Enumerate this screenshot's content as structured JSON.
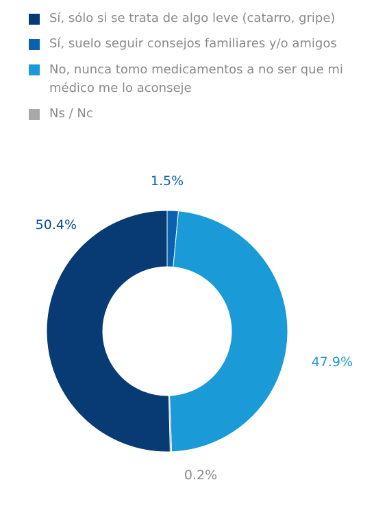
{
  "chart_data": {
    "type": "pie",
    "donut": true,
    "legend_position": "top-left",
    "slices": [
      {
        "label": "Sí, suelo seguir consejos familiares y/o amigos",
        "value": 1.5,
        "display": "1.5%",
        "color": "#0a62ae",
        "label_color": "#0a62ae"
      },
      {
        "label": "No, nunca tomo medicamentos a no ser que mi médico me lo aconseje",
        "value": 47.9,
        "display": "47.9%",
        "color": "#1a9ad6",
        "label_color": "#1a9ad6"
      },
      {
        "label": "Ns / Nc",
        "value": 0.2,
        "display": "0.2%",
        "color": "#a6a8ab",
        "label_color": "#8a8a8a"
      },
      {
        "label": "Sí, sólo si se trata de algo leve (catarro, gripe)",
        "value": 50.4,
        "display": "50.4%",
        "color": "#083a73",
        "label_color": "#0a4b8f"
      }
    ]
  },
  "legend": {
    "items": [
      {
        "text": "Sí, sólo si se trata de algo leve (catarro, gripe)",
        "color": "#083a73"
      },
      {
        "text": "Sí, suelo seguir consejos familiares y/o amigos",
        "color": "#0a62ae"
      },
      {
        "text": "No, nunca tomo medicamentos a no ser que mi médico me lo aconseje",
        "color": "#1a9ad6"
      },
      {
        "text": "Ns / Nc",
        "color": "#a6a8ab"
      }
    ]
  }
}
